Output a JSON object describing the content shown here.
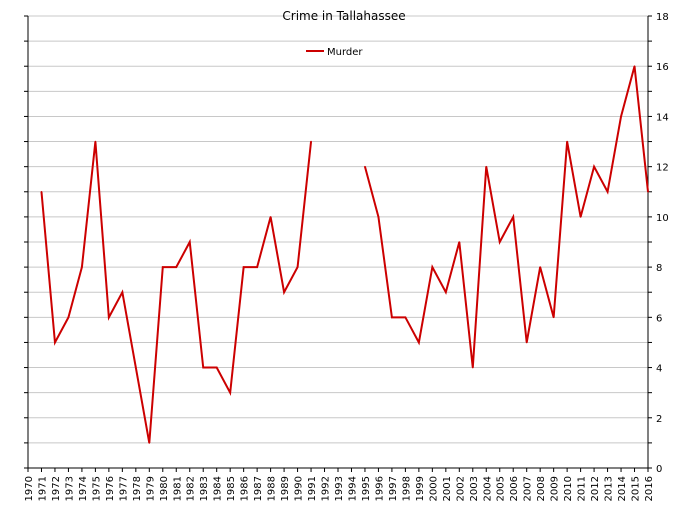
{
  "chart_data": {
    "type": "line",
    "title": "Crime in Tallahassee",
    "xlabel": "",
    "ylabel": "",
    "x": [
      1970,
      1971,
      1972,
      1973,
      1974,
      1975,
      1976,
      1977,
      1978,
      1979,
      1980,
      1981,
      1982,
      1983,
      1984,
      1985,
      1986,
      1987,
      1988,
      1989,
      1990,
      1991,
      1992,
      1993,
      1994,
      1995,
      1996,
      1997,
      1998,
      1999,
      2000,
      2001,
      2002,
      2003,
      2004,
      2005,
      2006,
      2007,
      2008,
      2009,
      2010,
      2011,
      2012,
      2013,
      2014,
      2015,
      2016
    ],
    "series": [
      {
        "name": "Murder",
        "color": "#cc0000",
        "values": [
          null,
          11,
          5,
          6,
          8,
          13,
          6,
          7,
          4,
          1,
          8,
          8,
          9,
          4,
          4,
          3,
          8,
          8,
          10,
          7,
          8,
          13,
          null,
          null,
          null,
          12,
          10,
          6,
          6,
          5,
          8,
          7,
          9,
          4,
          12,
          9,
          10,
          5,
          8,
          6,
          13,
          10,
          12,
          11,
          14,
          16,
          11
        ]
      }
    ],
    "ylim": [
      0,
      18
    ],
    "yticks": [
      0,
      2,
      4,
      6,
      8,
      10,
      12,
      14,
      16,
      18
    ],
    "y_axis_side": "right",
    "grid": true,
    "legend_position": "top-center",
    "colors": {
      "background": "#ffffff",
      "grid": "#c8c8c8",
      "axis": "#000000"
    }
  }
}
